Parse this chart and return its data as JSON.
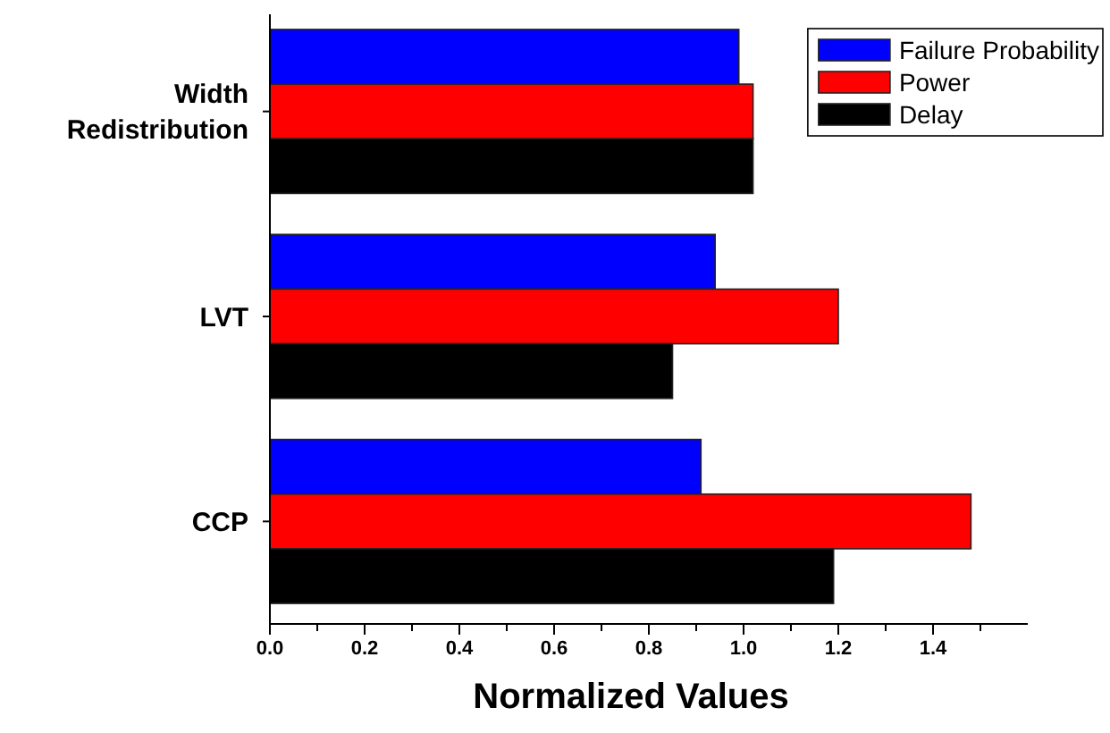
{
  "chart_data": {
    "type": "bar",
    "orientation": "horizontal",
    "xlabel": "Normalized Values",
    "categories": [
      "Width Redistribution",
      "LVT",
      "CCP"
    ],
    "series": [
      {
        "name": "Failure Probability",
        "color": "#0000ff",
        "values": [
          0.99,
          0.94,
          0.91
        ]
      },
      {
        "name": "Power",
        "color": "#ff0000",
        "values": [
          1.02,
          1.2,
          1.48
        ]
      },
      {
        "name": "Delay",
        "color": "#000000",
        "values": [
          1.02,
          0.85,
          1.19
        ]
      }
    ],
    "xlim": [
      0,
      1.6
    ],
    "xticks": [
      {
        "value": 0,
        "label": "0.0"
      },
      {
        "value": 0.1,
        "label": null
      },
      {
        "value": 0.2,
        "label": "0.2"
      },
      {
        "value": 0.3,
        "label": null
      },
      {
        "value": 0.4,
        "label": "0.4"
      },
      {
        "value": 0.5,
        "label": null
      },
      {
        "value": 0.6,
        "label": "0.6"
      },
      {
        "value": 0.7,
        "label": null
      },
      {
        "value": 0.8,
        "label": "0.8"
      },
      {
        "value": 0.9,
        "label": null
      },
      {
        "value": 1.0,
        "label": "1.0"
      },
      {
        "value": 1.1,
        "label": null
      },
      {
        "value": 1.2,
        "label": "1.2"
      },
      {
        "value": 1.3,
        "label": null
      },
      {
        "value": 1.4,
        "label": "1.4"
      },
      {
        "value": 1.5,
        "label": null
      }
    ],
    "grid": false,
    "legend": "top right"
  }
}
